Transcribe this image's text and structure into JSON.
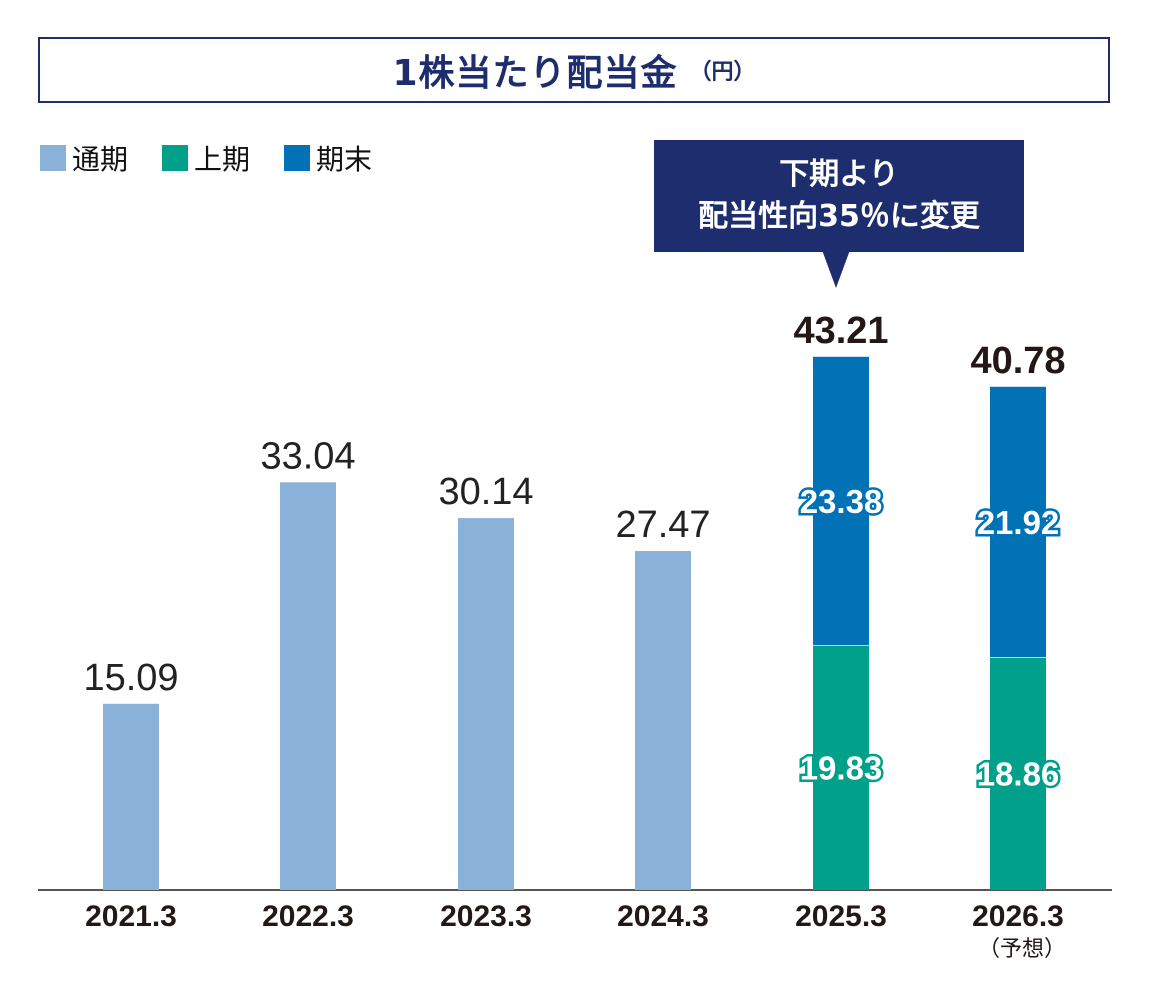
{
  "title": {
    "main": "1株当たり配当金",
    "unit": "（円）"
  },
  "legend": [
    {
      "label": "通期",
      "color": "#8ab2d9"
    },
    {
      "label": "上期",
      "color": "#00a08a"
    },
    {
      "label": "期末",
      "color": "#0072b5"
    }
  ],
  "callout": {
    "line1": "下期より",
    "line2": "配当性向35％に変更"
  },
  "chart_data": {
    "type": "bar",
    "categories": [
      "2021.3",
      "2022.3",
      "2023.3",
      "2024.3",
      "2025.3",
      "2026.3"
    ],
    "category_notes": [
      "",
      "",
      "",
      "",
      "",
      "（予想）"
    ],
    "series": [
      {
        "name": "通期",
        "values": [
          15.09,
          33.04,
          30.14,
          27.47,
          null,
          null
        ],
        "color": "#8ab2d9"
      },
      {
        "name": "上期",
        "values": [
          null,
          null,
          null,
          null,
          19.83,
          18.86
        ],
        "color": "#00a08a"
      },
      {
        "name": "期末",
        "values": [
          null,
          null,
          null,
          null,
          23.38,
          21.92
        ],
        "color": "#0072b5"
      }
    ],
    "totals": [
      null,
      null,
      null,
      null,
      43.21,
      40.78
    ],
    "ylim": [
      0,
      48
    ],
    "stacked": true,
    "grid": false
  }
}
